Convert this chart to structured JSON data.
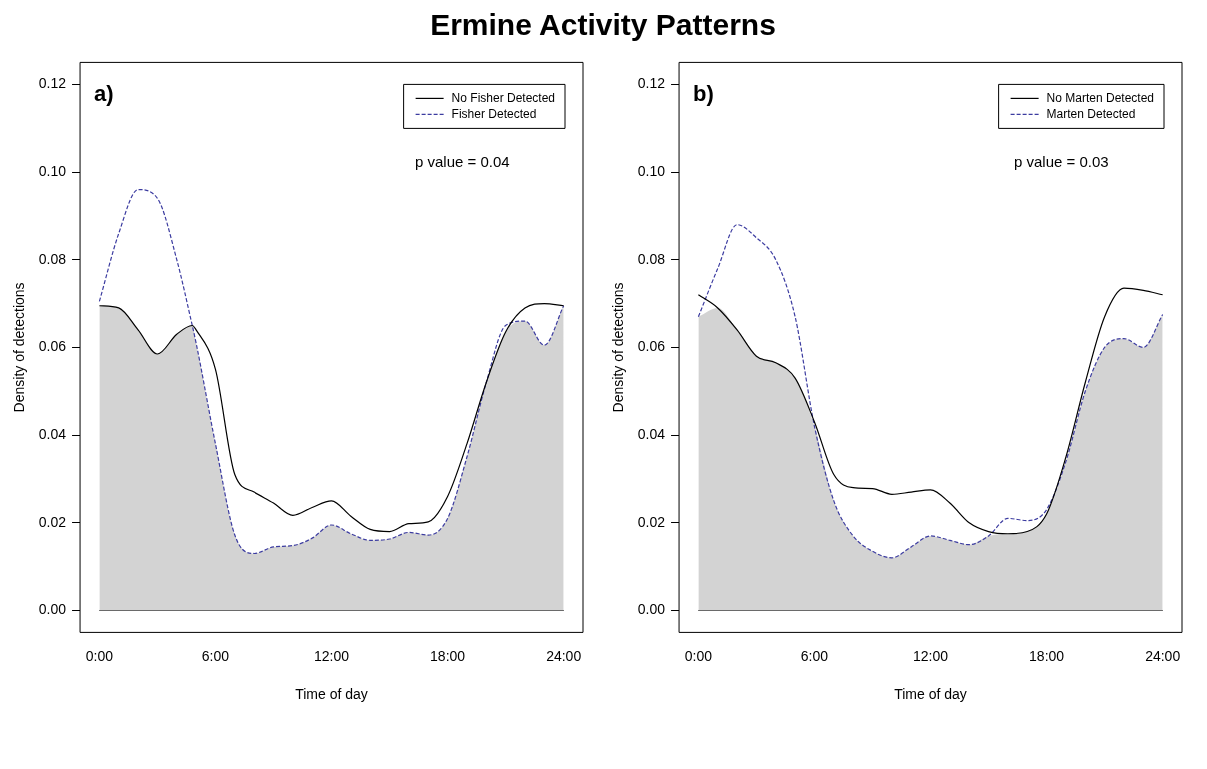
{
  "chart_data": [
    {
      "type": "line",
      "title": "Ermine Activity Patterns",
      "xlabel": "Time of day",
      "ylabel": "Density of detections",
      "x": [
        0,
        1,
        2,
        3,
        4,
        4.8,
        5,
        6,
        7,
        8,
        9,
        10,
        11,
        12,
        13,
        14,
        15,
        16,
        17,
        18,
        19,
        20,
        21,
        22,
        23,
        24
      ],
      "series": [
        {
          "type": "area",
          "color": "#d3d3d3",
          "values": [
            0.0695,
            0.069,
            0.064,
            0.0585,
            0.063,
            0.065,
            0.061,
            0.038,
            0.0172,
            0.013,
            0.0145,
            0.0148,
            0.0165,
            0.0195,
            0.0175,
            0.016,
            0.0163,
            0.0178,
            0.0172,
            0.021,
            0.035,
            0.052,
            0.0635,
            0.066,
            0.0605,
            0.0695
          ]
        },
        {
          "name": "No Fisher Detected",
          "color": "#000000",
          "line_style": "solid",
          "values": [
            0.0695,
            0.069,
            0.064,
            0.0585,
            0.063,
            0.065,
            0.064,
            0.055,
            0.031,
            0.027,
            0.0245,
            0.0217,
            0.0235,
            0.025,
            0.0215,
            0.0185,
            0.018,
            0.0198,
            0.0202,
            0.026,
            0.038,
            0.052,
            0.0635,
            0.069,
            0.07,
            0.0695
          ]
        },
        {
          "name": "Fisher Detected",
          "color": "#3c3ca0",
          "line_style": "dashed",
          "values": [
            0.0705,
            0.086,
            0.096,
            0.094,
            0.08,
            0.065,
            0.061,
            0.038,
            0.0172,
            0.013,
            0.0145,
            0.0148,
            0.0165,
            0.0195,
            0.0175,
            0.016,
            0.0163,
            0.0178,
            0.0172,
            0.021,
            0.035,
            0.052,
            0.065,
            0.066,
            0.0605,
            0.0695
          ]
        }
      ],
      "xlim": [
        -1,
        25
      ],
      "xticks": [
        {
          "value": 0,
          "label": "0:00"
        },
        {
          "value": 6,
          "label": "6:00"
        },
        {
          "value": 12,
          "label": "12:00"
        },
        {
          "value": 18,
          "label": "18:00"
        },
        {
          "value": 24,
          "label": "24:00"
        }
      ],
      "ylim": [
        -0.005,
        0.125
      ],
      "yticks": [
        {
          "value": 0,
          "label": "0.00"
        },
        {
          "value": 0.02,
          "label": "0.02"
        },
        {
          "value": 0.04,
          "label": "0.04"
        },
        {
          "value": 0.06,
          "label": "0.06"
        },
        {
          "value": 0.08,
          "label": "0.08"
        },
        {
          "value": 0.1,
          "label": "0.10"
        },
        {
          "value": 0.12,
          "label": "0.12"
        }
      ],
      "ref_lines": [
        {
          "axis": "y",
          "value": 0,
          "color": "#000000"
        }
      ],
      "annotations": [
        "a)",
        "p value = 0.04"
      ],
      "legend": "top right",
      "grid": false,
      "marker": "none"
    },
    {
      "type": "line",
      "xlabel": "Time of day",
      "ylabel": "Density of detections",
      "x": [
        0,
        1,
        2,
        3,
        4,
        5,
        6,
        7,
        8,
        9,
        10,
        11,
        12,
        13,
        14,
        15,
        16,
        17,
        18,
        19,
        20,
        21,
        22,
        23,
        24
      ],
      "series": [
        {
          "type": "area",
          "color": "#d3d3d3",
          "values": [
            0.067,
            0.069,
            0.064,
            0.058,
            0.0565,
            0.053,
            0.042,
            0.025,
            0.017,
            0.0135,
            0.012,
            0.0145,
            0.017,
            0.016,
            0.015,
            0.017,
            0.0175,
            0.018,
            0.022,
            0.034,
            0.05,
            0.06,
            0.062,
            0.06,
            0.0675
          ]
        },
        {
          "name": "No Marten Detected",
          "color": "#000000",
          "line_style": "solid",
          "values": [
            0.072,
            0.069,
            0.064,
            0.058,
            0.0565,
            0.053,
            0.043,
            0.031,
            0.028,
            0.0278,
            0.0265,
            0.027,
            0.0275,
            0.0245,
            0.02,
            0.018,
            0.0175,
            0.018,
            0.022,
            0.035,
            0.052,
            0.067,
            0.0735,
            0.073,
            0.072
          ]
        },
        {
          "name": "Marten Detected",
          "color": "#3c3ca0",
          "line_style": "dashed",
          "values": [
            0.067,
            0.078,
            0.088,
            0.085,
            0.08,
            0.067,
            0.042,
            0.025,
            0.017,
            0.0135,
            0.012,
            0.0145,
            0.017,
            0.016,
            0.015,
            0.017,
            0.021,
            0.0205,
            0.023,
            0.034,
            0.05,
            0.06,
            0.062,
            0.06,
            0.0675
          ]
        }
      ],
      "xlim": [
        -1,
        25
      ],
      "xticks": [
        {
          "value": 0,
          "label": "0:00"
        },
        {
          "value": 6,
          "label": "6:00"
        },
        {
          "value": 12,
          "label": "12:00"
        },
        {
          "value": 18,
          "label": "18:00"
        },
        {
          "value": 24,
          "label": "24:00"
        }
      ],
      "ylim": [
        -0.005,
        0.125
      ],
      "yticks": [
        {
          "value": 0,
          "label": "0.00"
        },
        {
          "value": 0.02,
          "label": "0.02"
        },
        {
          "value": 0.04,
          "label": "0.04"
        },
        {
          "value": 0.06,
          "label": "0.06"
        },
        {
          "value": 0.08,
          "label": "0.08"
        },
        {
          "value": 0.1,
          "label": "0.10"
        },
        {
          "value": 0.12,
          "label": "0.12"
        }
      ],
      "ref_lines": [
        {
          "axis": "y",
          "value": 0,
          "color": "#000000"
        }
      ],
      "annotations": [
        "b)",
        "p value = 0.03"
      ],
      "legend": "top right",
      "grid": false,
      "marker": "none"
    }
  ]
}
